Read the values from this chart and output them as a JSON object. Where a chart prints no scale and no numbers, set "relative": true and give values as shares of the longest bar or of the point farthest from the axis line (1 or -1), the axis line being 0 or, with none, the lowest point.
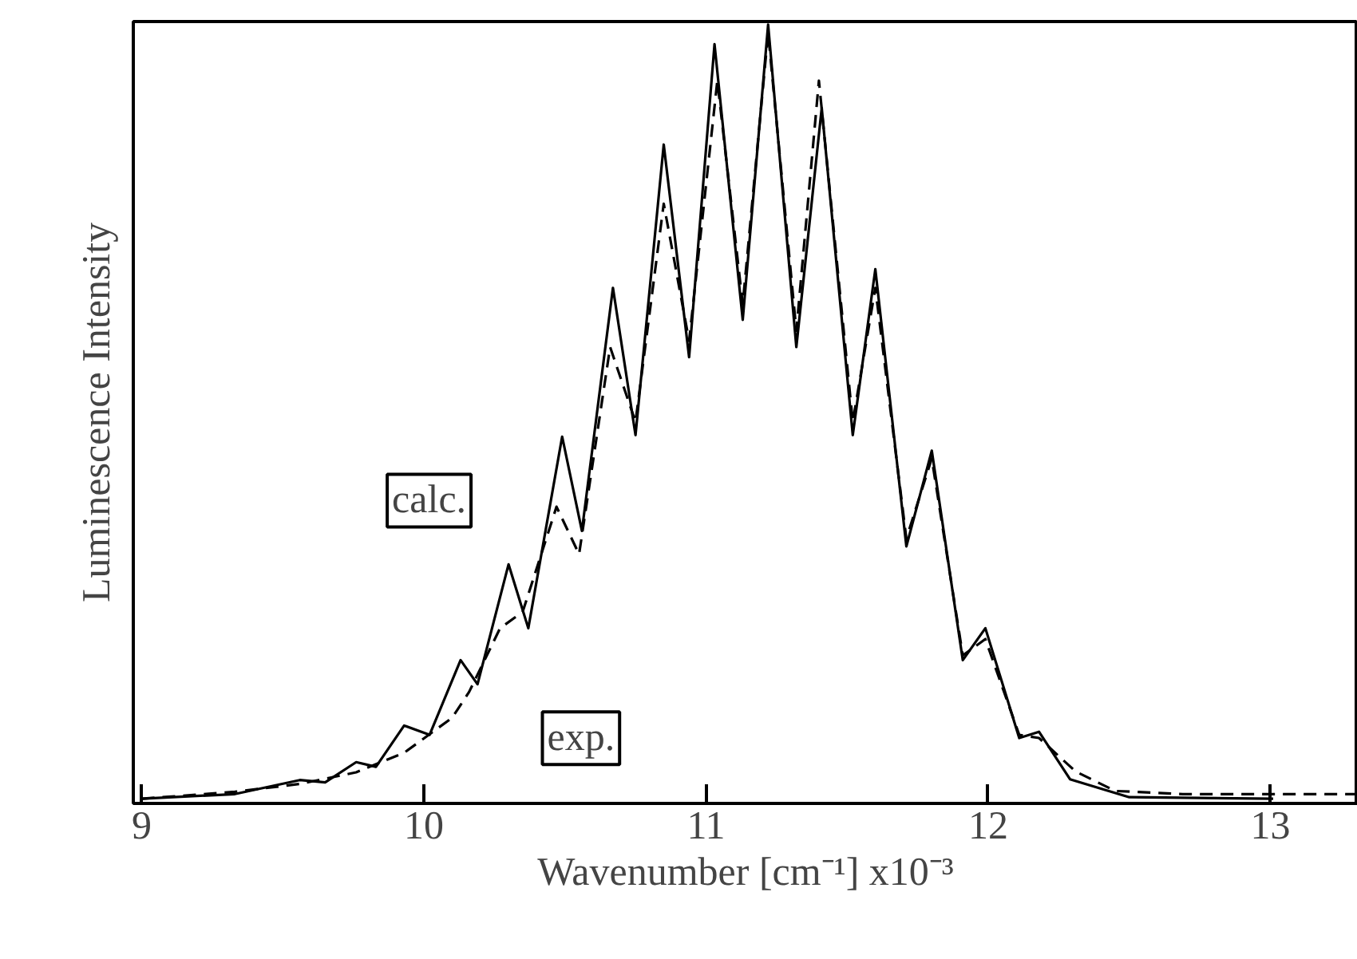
{
  "chart_data": {
    "type": "line",
    "relative": true,
    "xlabel": "Wavenumber [cm⁻¹] x10⁻³",
    "ylabel": "Luminescence Intensity",
    "xlim": [
      8.97,
      13.31
    ],
    "xticks": [
      9,
      10,
      11,
      12,
      13
    ],
    "grid": false,
    "annotations": [
      "calc.",
      "exp."
    ],
    "series": [
      {
        "color": "#000000",
        "line_style": "solid",
        "x": [
          9.0,
          9.33,
          9.56,
          9.65,
          9.76,
          9.83,
          9.93,
          10.02,
          10.13,
          10.19,
          10.3,
          10.37,
          10.49,
          10.56,
          10.67,
          10.75,
          10.85,
          10.94,
          11.03,
          11.13,
          11.22,
          11.32,
          11.41,
          11.52,
          11.6,
          11.71,
          11.8,
          11.91,
          11.99,
          12.11,
          12.18,
          12.29,
          12.5,
          13.01
        ],
        "values": [
          0.006,
          0.012,
          0.03,
          0.027,
          0.053,
          0.047,
          0.1,
          0.088,
          0.184,
          0.153,
          0.307,
          0.225,
          0.471,
          0.35,
          0.662,
          0.473,
          0.846,
          0.573,
          0.975,
          0.621,
          1.0,
          0.586,
          0.893,
          0.473,
          0.686,
          0.33,
          0.453,
          0.184,
          0.225,
          0.084,
          0.092,
          0.031,
          0.008,
          0.006
        ]
      },
      {
        "color": "#000000",
        "line_style": "dashed",
        "x": [
          9.0,
          9.33,
          9.56,
          9.76,
          9.93,
          10.1,
          10.16,
          10.27,
          10.35,
          10.47,
          10.55,
          10.66,
          10.75,
          10.85,
          10.94,
          11.04,
          11.13,
          11.22,
          11.32,
          11.4,
          11.52,
          11.6,
          11.71,
          11.8,
          11.91,
          11.99,
          12.11,
          12.18,
          12.31,
          12.45,
          12.69,
          13.3
        ],
        "values": [
          0.006,
          0.015,
          0.025,
          0.04,
          0.065,
          0.11,
          0.143,
          0.225,
          0.246,
          0.381,
          0.32,
          0.586,
          0.49,
          0.77,
          0.594,
          0.928,
          0.641,
          0.99,
          0.607,
          0.928,
          0.49,
          0.662,
          0.34,
          0.443,
          0.19,
          0.211,
          0.088,
          0.084,
          0.041,
          0.016,
          0.012,
          0.012
        ]
      }
    ]
  }
}
